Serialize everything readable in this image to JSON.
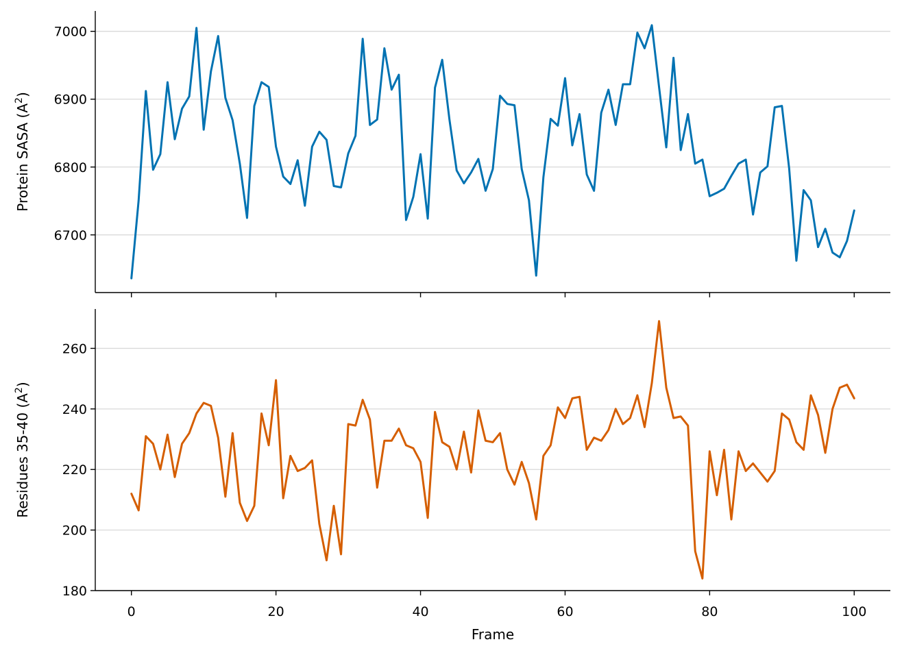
{
  "chart_data": [
    {
      "type": "line",
      "xlabel": "",
      "ylabel": "Protein SASA (A",
      "ylabel_sup": "2",
      "ylabel_suffix": ")",
      "xlim": [
        -5,
        105
      ],
      "ylim": [
        6615,
        7030
      ],
      "xticks": [
        0,
        20,
        40,
        60,
        80,
        100
      ],
      "xtick_labels_visible": false,
      "yticks": [
        6700,
        6800,
        6900,
        7000
      ],
      "ytick_labels": [
        "6700",
        "6800",
        "6900",
        "7000"
      ],
      "grid": "horizontal",
      "color": "#0072b2",
      "series": [
        {
          "x": [
            0,
            1,
            2,
            3,
            4,
            5,
            6,
            7,
            8,
            9,
            10,
            11,
            12,
            13,
            14,
            15,
            16,
            17,
            18,
            19,
            20,
            21,
            22,
            23,
            24,
            25,
            26,
            27,
            28,
            29,
            30,
            31,
            32,
            33,
            34,
            35,
            36,
            37,
            38,
            39,
            40,
            41,
            42,
            43,
            44,
            45,
            46,
            47,
            48,
            49,
            50,
            51,
            52,
            53,
            54,
            55,
            56,
            57,
            58,
            59,
            60,
            61,
            62,
            63,
            64,
            65,
            66,
            67,
            68,
            69,
            70,
            71,
            72,
            73,
            74,
            75,
            76,
            77,
            78,
            79,
            80,
            81,
            82,
            83,
            84,
            85,
            86,
            87,
            88,
            89,
            90,
            91,
            92,
            93,
            94,
            95,
            96,
            97,
            98,
            99,
            100
          ],
          "values": [
            6636,
            6751,
            6912,
            6796,
            6819,
            6925,
            6841,
            6886,
            6904,
            7005,
            6855,
            6941,
            6993,
            6902,
            6869,
            6805,
            6725,
            6890,
            6925,
            6918,
            6830,
            6786,
            6775,
            6810,
            6743,
            6830,
            6852,
            6840,
            6772,
            6770,
            6820,
            6846,
            6989,
            6862,
            6870,
            6975,
            6914,
            6936,
            6722,
            6756,
            6819,
            6724,
            6917,
            6958,
            6870,
            6795,
            6776,
            6792,
            6812,
            6765,
            6797,
            6905,
            6893,
            6891,
            6797,
            6751,
            6640,
            6785,
            6871,
            6861,
            6931,
            6832,
            6878,
            6789,
            6765,
            6880,
            6914,
            6862,
            6922,
            6922,
            6998,
            6975,
            7009,
            6918,
            6829,
            6961,
            6825,
            6878,
            6805,
            6811,
            6757,
            6762,
            6768,
            6787,
            6805,
            6811,
            6730,
            6792,
            6801,
            6888,
            6890,
            6798,
            6662,
            6766,
            6751,
            6682,
            6709,
            6674,
            6667,
            6691,
            6736
          ]
        }
      ]
    },
    {
      "type": "line",
      "xlabel": "Frame",
      "ylabel": "Residues 35-40 (A",
      "ylabel_sup": "2",
      "ylabel_suffix": ")",
      "xlim": [
        -5,
        105
      ],
      "ylim": [
        180,
        273
      ],
      "xticks": [
        0,
        20,
        40,
        60,
        80,
        100
      ],
      "xtick_labels": [
        "0",
        "20",
        "40",
        "60",
        "80",
        "100"
      ],
      "xtick_labels_visible": true,
      "yticks": [
        180,
        200,
        220,
        240,
        260
      ],
      "ytick_labels": [
        "180",
        "200",
        "220",
        "240",
        "260"
      ],
      "grid": "horizontal",
      "color": "#d55e00",
      "series": [
        {
          "x": [
            0,
            1,
            2,
            3,
            4,
            5,
            6,
            7,
            8,
            9,
            10,
            11,
            12,
            13,
            14,
            15,
            16,
            17,
            18,
            19,
            20,
            21,
            22,
            23,
            24,
            25,
            26,
            27,
            28,
            29,
            30,
            31,
            32,
            33,
            34,
            35,
            36,
            37,
            38,
            39,
            40,
            41,
            42,
            43,
            44,
            45,
            46,
            47,
            48,
            49,
            50,
            51,
            52,
            53,
            54,
            55,
            56,
            57,
            58,
            59,
            60,
            61,
            62,
            63,
            64,
            65,
            66,
            67,
            68,
            69,
            70,
            71,
            72,
            73,
            74,
            75,
            76,
            77,
            78,
            79,
            80,
            81,
            82,
            83,
            84,
            85,
            86,
            87,
            88,
            89,
            90,
            91,
            92,
            93,
            94,
            95,
            96,
            97,
            98,
            99,
            100
          ],
          "values": [
            212,
            206.5,
            231,
            228.5,
            220,
            231.5,
            217.5,
            228.5,
            232,
            238.5,
            242,
            241,
            230.5,
            211,
            232,
            209,
            203,
            208,
            238.5,
            228,
            249.5,
            210.5,
            224.5,
            219.5,
            220.5,
            223,
            202,
            190,
            208,
            192,
            235,
            234.5,
            243,
            236.5,
            214,
            229.5,
            229.5,
            233.5,
            228,
            227,
            222.5,
            204,
            239,
            229,
            227.5,
            220,
            232.5,
            219,
            239.5,
            229.5,
            229,
            232,
            220,
            215,
            222.5,
            215.5,
            203.5,
            224.5,
            228,
            240.5,
            237,
            243.5,
            244,
            226.5,
            230.5,
            229.5,
            233,
            240,
            235,
            237,
            244.5,
            234,
            248.5,
            269,
            247,
            237,
            237.5,
            234.5,
            193,
            184,
            226,
            211.5,
            226.5,
            203.5,
            226,
            219.5,
            222,
            219,
            216,
            219.5,
            238.5,
            236.5,
            229,
            226.5,
            244.5,
            238,
            225.5,
            240,
            247,
            248,
            243.5
          ]
        }
      ]
    }
  ]
}
